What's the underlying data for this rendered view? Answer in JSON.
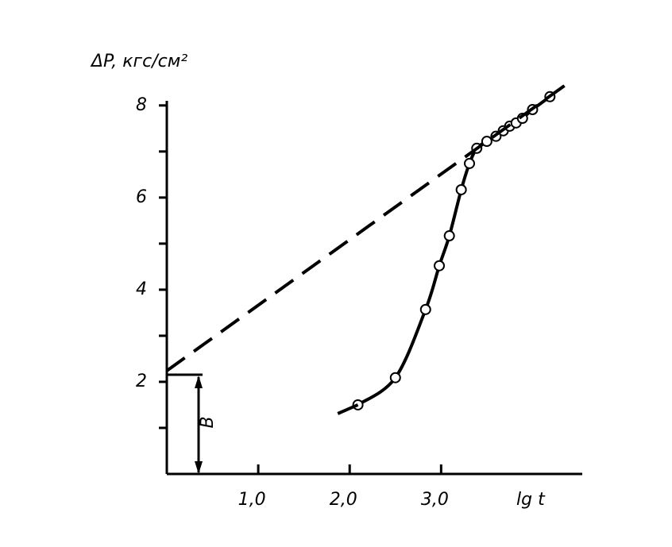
{
  "chart_data": {
    "type": "line",
    "y_label": "ΔP, кгс/см²",
    "x_label": "lg t",
    "annotation": "В",
    "xlim": [
      0,
      4.5
    ],
    "ylim": [
      0,
      8.1
    ],
    "xticks": [
      {
        "value": 1,
        "label": "1,0"
      },
      {
        "value": 2,
        "label": "2,0"
      },
      {
        "value": 3,
        "label": "3,0"
      }
    ],
    "yticks": [
      {
        "value": 1,
        "label": ""
      },
      2,
      {
        "value": 3,
        "label": ""
      },
      4,
      {
        "value": 5,
        "label": ""
      },
      6,
      {
        "value": 7,
        "label": ""
      },
      8
    ],
    "series": [
      {
        "color": "#000000",
        "style": "solid",
        "markers": true,
        "x": [
          2.09,
          2.5,
          2.83,
          2.98,
          3.09,
          3.22,
          3.31,
          3.39,
          3.5,
          3.6,
          3.68,
          3.75,
          3.82,
          3.89,
          4.0,
          4.19
        ],
        "values": [
          1.5,
          2.09,
          3.57,
          4.52,
          5.17,
          6.17,
          6.74,
          7.07,
          7.22,
          7.33,
          7.45,
          7.55,
          7.62,
          7.72,
          7.91,
          8.19
        ]
      },
      {
        "color": "#000000",
        "style": "solid",
        "markers": false,
        "x": [
          1.87,
          2.09
        ],
        "values": [
          1.31,
          1.5
        ]
      },
      {
        "color": "#000000",
        "style": "dashed",
        "markers": false,
        "x": [
          0,
          4.42
        ],
        "values": [
          2.24,
          8.53
        ]
      }
    ]
  }
}
